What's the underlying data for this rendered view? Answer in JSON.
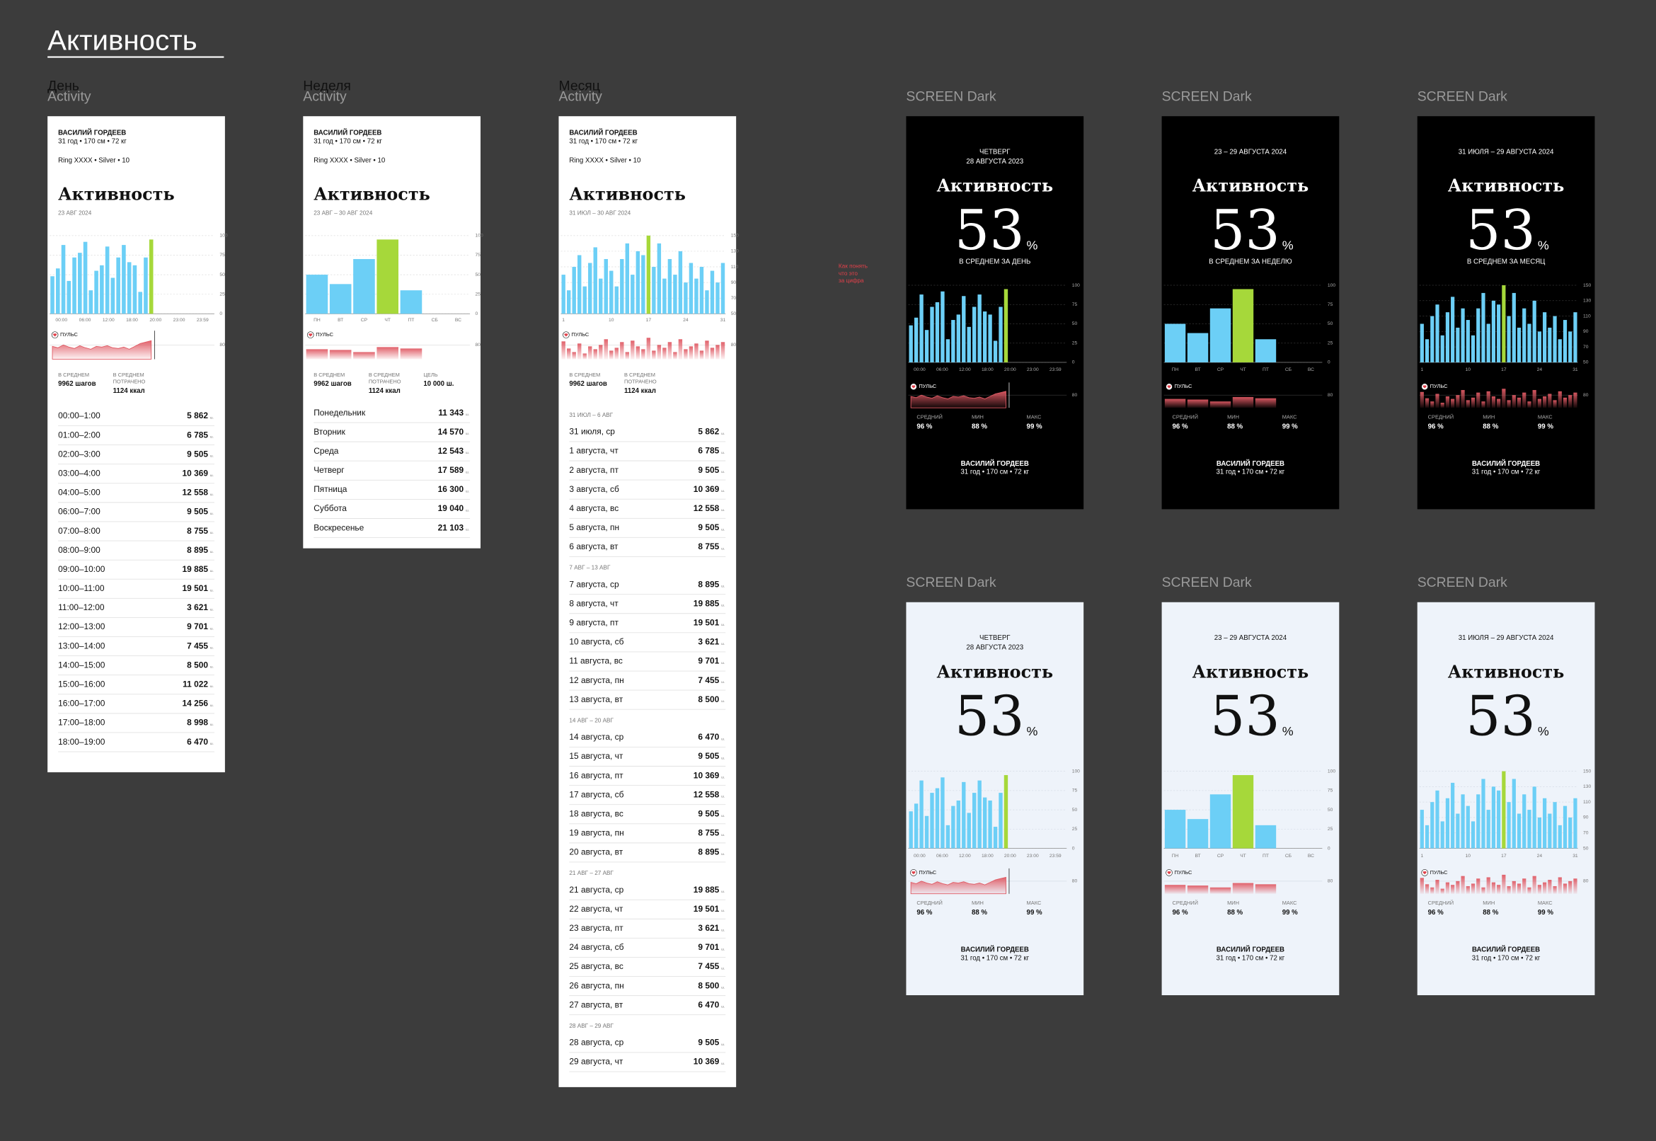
{
  "page_title": "Активность",
  "column_labels": [
    "День",
    "Неделя",
    "Месяц"
  ],
  "frame_label": "Activity",
  "screen_label": "SCREEN Dark",
  "note": [
    "Как понять",
    "что это",
    "за цифра"
  ],
  "profile": {
    "name": "ВАСИЛИЙ ГОРДЕЕВ",
    "stats": "31 год • 170 см • 72 кг",
    "ring": "Ring XXXX • Silver • 10"
  },
  "heading": "Активность",
  "pulse_label": "ПУЛЬС",
  "unit": "ш.",
  "summary": {
    "avg_label": [
      "В СРЕДНЕМ"
    ],
    "avg_value": "9962 шагов",
    "spent_label": [
      "В СРЕДНЕМ",
      "ПОТРАЧЕНО"
    ],
    "spent_value": "1124 ккал"
  },
  "score": 53,
  "score_unit": "%",
  "pulse_stats": [
    {
      "label": "СРЕДНИЙ",
      "value": "96 %"
    },
    {
      "label": "МИН",
      "value": "88 %"
    },
    {
      "label": "МАКС",
      "value": "99 %"
    }
  ],
  "charts": [
    {
      "ylim": [
        0,
        100
      ],
      "yticks": [
        100,
        75,
        50,
        25,
        0
      ],
      "xlabels": [
        "00:00",
        "06:00",
        "12:00",
        "18:00",
        "20:00",
        "23:00",
        "23:59"
      ],
      "values": [
        48,
        58,
        88,
        42,
        72,
        78,
        92,
        30,
        55,
        62,
        86,
        46,
        72,
        88,
        66,
        62,
        28,
        72,
        95
      ],
      "highlight": 18,
      "color": "#6ccff6",
      "highlight_color": "#a6d83a",
      "pulse": [
        78,
        76,
        80,
        77,
        75,
        79,
        76,
        74,
        78,
        77,
        79,
        76,
        75,
        77,
        74,
        78,
        82,
        84,
        86
      ],
      "pulse_ylim": [
        60,
        100
      ],
      "pulse_ticks": [
        80
      ],
      "pulse_color": "#e05a64"
    },
    {
      "ylim": [
        0,
        100
      ],
      "yticks": [
        100,
        75,
        50,
        25,
        0
      ],
      "xlabels": [
        "ПН",
        "ВТ",
        "СР",
        "ЧТ",
        "ПТ",
        "СБ",
        "ВС"
      ],
      "values": [
        50,
        38,
        70,
        95,
        30,
        null,
        null
      ],
      "highlight": 3,
      "color": "#6ccff6",
      "highlight_color": "#a6d83a",
      "pulse": [
        74,
        73,
        70,
        77,
        75,
        null,
        null
      ],
      "pulse_ylim": [
        60,
        100
      ],
      "pulse_ticks": [
        80
      ],
      "pulse_color": "#e05a64"
    },
    {
      "ylim": [
        50,
        150
      ],
      "yticks": [
        150,
        130,
        110,
        90,
        70,
        50
      ],
      "xlabels": [
        1,
        10,
        17,
        24,
        31
      ],
      "values": [
        100,
        80,
        110,
        125,
        85,
        115,
        135,
        95,
        120,
        105,
        85,
        120,
        140,
        100,
        130,
        125,
        150,
        110,
        140,
        95,
        120,
        100,
        130,
        90,
        115,
        95,
        110,
        80,
        105,
        90,
        115
      ],
      "highlight": 16,
      "color": "#6ccff6",
      "highlight_color": "#a6d83a",
      "pulse": [
        85,
        75,
        70,
        82,
        68,
        78,
        74,
        80,
        88,
        72,
        76,
        84,
        70,
        86,
        78,
        74,
        90,
        72,
        80,
        76,
        84,
        70,
        88,
        74,
        78,
        82,
        72,
        86,
        76,
        80,
        84
      ],
      "pulse_ylim": [
        60,
        100
      ],
      "pulse_ticks": [
        80
      ],
      "pulse_color": "#e05a64"
    }
  ],
  "lists": [
    {
      "date": "23 АВГ 2024",
      "groups": [
        {
          "rows": [
            [
              "00:00–1:00",
              "5 862"
            ],
            [
              "01:00–2:00",
              "6 785"
            ],
            [
              "02:00–3:00",
              "9 505"
            ],
            [
              "03:00–4:00",
              "10 369"
            ],
            [
              "04:00–5:00",
              "12 558"
            ],
            [
              "06:00–7:00",
              "9 505"
            ],
            [
              "07:00–8:00",
              "8 755"
            ],
            [
              "08:00–9:00",
              "8 895"
            ],
            [
              "09:00–10:00",
              "19 885"
            ],
            [
              "10:00–11:00",
              "19 501"
            ],
            [
              "11:00–12:00",
              "3 621"
            ],
            [
              "12:00–13:00",
              "9 701"
            ],
            [
              "13:00–14:00",
              "7 455"
            ],
            [
              "14:00–15:00",
              "8 500"
            ],
            [
              "15:00–16:00",
              "11 022"
            ],
            [
              "16:00–17:00",
              "14 256"
            ],
            [
              "17:00–18:00",
              "8 998"
            ],
            [
              "18:00–19:00",
              "6 470"
            ]
          ]
        }
      ]
    },
    {
      "date": "23 АВГ – 30 АВГ 2024",
      "goal_label": [
        "ЦЕЛЬ"
      ],
      "goal_value": "10 000 ш.",
      "groups": [
        {
          "rows": [
            [
              "Понедельник",
              "11 343"
            ],
            [
              "Вторник",
              "14 570"
            ],
            [
              "Среда",
              "12 543"
            ],
            [
              "Четверг",
              "17 589"
            ],
            [
              "Пятница",
              "16 300"
            ],
            [
              "Суббота",
              "19 040"
            ],
            [
              "Воскресенье",
              "21 103"
            ]
          ]
        }
      ]
    },
    {
      "date": "31 ИЮЛ – 30 АВГ 2024",
      "groups": [
        {
          "label": "31 ИЮЛ – 6 АВГ",
          "rows": [
            [
              "31 июля, ср",
              "5 862"
            ],
            [
              "1 августа, чт",
              "6 785"
            ],
            [
              "2 августа, пт",
              "9 505"
            ],
            [
              "3 августа, сб",
              "10 369"
            ],
            [
              "4 августа, вс",
              "12 558"
            ],
            [
              "5 августа, пн",
              "9 505"
            ],
            [
              "6 августа, вт",
              "8 755"
            ]
          ]
        },
        {
          "label": "7 АВГ – 13 АВГ",
          "rows": [
            [
              "7 августа, ср",
              "8 895"
            ],
            [
              "8 августа, чт",
              "19 885"
            ],
            [
              "9 августа, пт",
              "19 501"
            ],
            [
              "10 августа, сб",
              "3 621"
            ],
            [
              "11 августа, вс",
              "9 701"
            ],
            [
              "12 августа, пн",
              "7 455"
            ],
            [
              "13 августа, вт",
              "8 500"
            ]
          ]
        },
        {
          "label": "14 АВГ – 20 АВГ",
          "rows": [
            [
              "14 августа, ср",
              "6 470"
            ],
            [
              "15 августа, чт",
              "9 505"
            ],
            [
              "16 августа, пт",
              "10 369"
            ],
            [
              "17 августа, сб",
              "12 558"
            ],
            [
              "18 августа, вс",
              "9 505"
            ],
            [
              "19 августа, пн",
              "8 755"
            ],
            [
              "20 августа, вт",
              "8 895"
            ]
          ]
        },
        {
          "label": "21 АВГ – 27 АВГ",
          "rows": [
            [
              "21 августа, ср",
              "19 885"
            ],
            [
              "22 августа, чт",
              "19 501"
            ],
            [
              "23 августа, пт",
              "3 621"
            ],
            [
              "24 августа, сб",
              "9 701"
            ],
            [
              "25 августа, вс",
              "7 455"
            ],
            [
              "26 августа, пн",
              "8 500"
            ],
            [
              "27 августа, вт",
              "6 470"
            ]
          ]
        },
        {
          "label": "28 АВГ – 29 АВГ",
          "rows": [
            [
              "28 августа, ср",
              "9 505"
            ],
            [
              "29 августа, чт",
              "10 369"
            ]
          ]
        }
      ]
    }
  ],
  "screens": [
    {
      "date": [
        "ЧЕТВЕРГ",
        "28 АВГУСТА 2023"
      ],
      "avg": "В СРЕДНЕМ ЗА ДЕНЬ"
    },
    {
      "date": [
        "23 – 29 АВГУСТА 2024"
      ],
      "avg": "В СРЕДНЕМ ЗА НЕДЕЛЮ"
    },
    {
      "date": [
        "31 ИЮЛЯ – 29 АВГУСТА 2024"
      ],
      "avg": "В СРЕДНЕМ ЗА МЕСЯЦ"
    }
  ]
}
